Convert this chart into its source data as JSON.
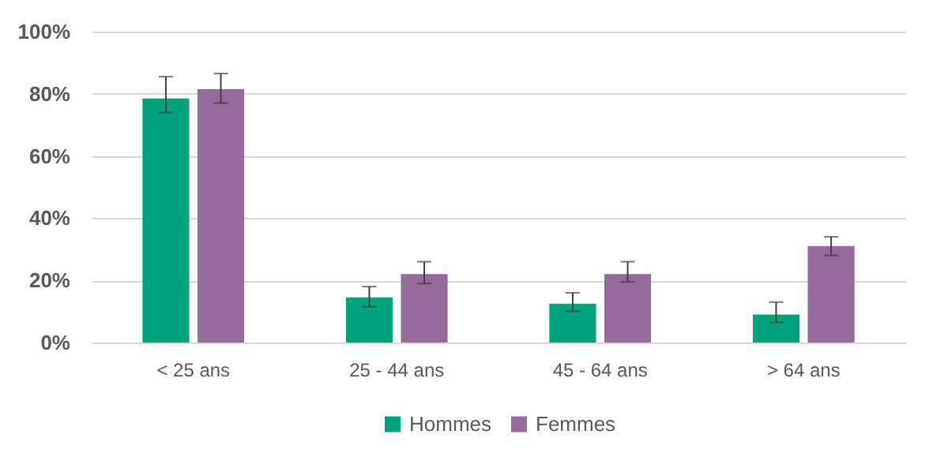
{
  "chart_data": {
    "type": "bar",
    "categories": [
      "< 25 ans",
      "25 - 44 ans",
      "45 - 64 ans",
      "> 64 ans"
    ],
    "series": [
      {
        "name": "Hommes",
        "color": "#00a27b",
        "values": [
          78.5,
          14.5,
          12.5,
          9
        ],
        "errors": [
          [
            74,
            85.5
          ],
          [
            11.5,
            18
          ],
          [
            10,
            16
          ],
          [
            6.5,
            13
          ]
        ]
      },
      {
        "name": "Femmes",
        "color": "#956b9b",
        "values": [
          81.5,
          22,
          22,
          31
        ],
        "errors": [
          [
            77,
            86.5
          ],
          [
            19,
            26
          ],
          [
            19.5,
            26
          ],
          [
            28,
            34
          ]
        ]
      }
    ],
    "ylim": [
      0,
      100
    ],
    "yticks": [
      {
        "value": 0,
        "label": "0%"
      },
      {
        "value": 20,
        "label": "20%"
      },
      {
        "value": 40,
        "label": "40%"
      },
      {
        "value": 60,
        "label": "60%"
      },
      {
        "value": 80,
        "label": "80%"
      },
      {
        "value": 100,
        "label": "100%"
      }
    ],
    "grid": "y",
    "legend": "bottom"
  }
}
